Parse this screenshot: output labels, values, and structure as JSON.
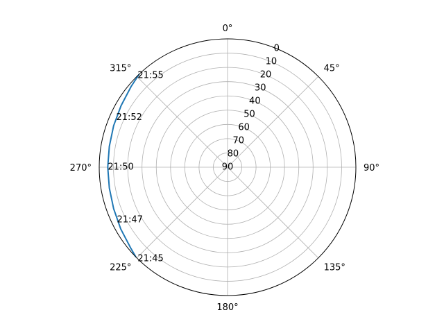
{
  "chart_data": {
    "type": "polar-line",
    "angle_tick_labels": [
      "0°",
      "45°",
      "90°",
      "135°",
      "180°",
      "225°",
      "270°",
      "315°"
    ],
    "angle_ticks_deg": [
      0,
      45,
      90,
      135,
      180,
      225,
      270,
      315
    ],
    "theta_zero_location": "N",
    "theta_direction": "clockwise",
    "radial_axis": {
      "quantity": "elevation",
      "ticks": [
        0,
        10,
        20,
        30,
        40,
        50,
        60,
        70,
        80,
        90
      ],
      "tick_labels": [
        "0",
        "10",
        "20",
        "30",
        "40",
        "50",
        "60",
        "70",
        "80",
        "90"
      ],
      "range": [
        90,
        0
      ],
      "inverted": true
    },
    "grid": true,
    "series": [
      {
        "color": "#1f77b4",
        "points": [
          {
            "azimuth": 225.5,
            "elevation": 0
          },
          {
            "azimuth": 230,
            "elevation": 1.5
          },
          {
            "azimuth": 240,
            "elevation": 3.5
          },
          {
            "azimuth": 250,
            "elevation": 5
          },
          {
            "azimuth": 260,
            "elevation": 5.8
          },
          {
            "azimuth": 270,
            "elevation": 6
          },
          {
            "azimuth": 280,
            "elevation": 5.8
          },
          {
            "azimuth": 290,
            "elevation": 5
          },
          {
            "azimuth": 300,
            "elevation": 3.8
          },
          {
            "azimuth": 310,
            "elevation": 1.8
          },
          {
            "azimuth": 316.5,
            "elevation": 0
          }
        ]
      }
    ],
    "point_labels": [
      {
        "text": "21:45",
        "azimuth": 224.5,
        "elevation": 0
      },
      {
        "text": "21:47",
        "azimuth": 244.5,
        "elevation": 4
      },
      {
        "text": "21:50",
        "azimuth": 270,
        "elevation": 6
      },
      {
        "text": "21:52",
        "azimuth": 294,
        "elevation": 4.5
      },
      {
        "text": "21:55",
        "azimuth": 315.5,
        "elevation": 0
      }
    ]
  }
}
